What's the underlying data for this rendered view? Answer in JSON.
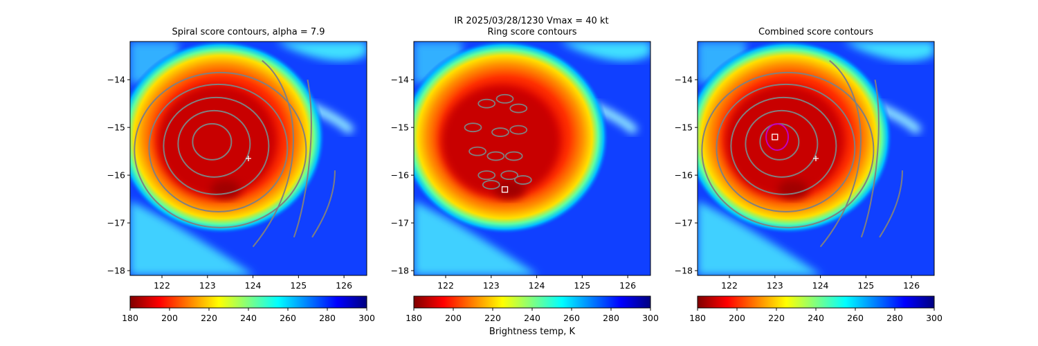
{
  "suptitle": "IR  2025/03/28/1230    Vmax = 40 kt",
  "panels": [
    {
      "title": "Spiral score contours, alpha =  7.9"
    },
    {
      "title": "Ring score contours"
    },
    {
      "title": "Combined score contours"
    }
  ],
  "colorbar_label": "Brightness temp, K",
  "colors": {
    "contour": "#808080",
    "marker": "#ffffff",
    "circle": "#c000c0",
    "colormap": [
      "#800000",
      "#ff0000",
      "#ff8000",
      "#ffff00",
      "#80ff80",
      "#00ffff",
      "#0080ff",
      "#0000ff",
      "#000080"
    ]
  },
  "chart_data": [
    {
      "type": "heatmap",
      "title": "Spiral score contours, alpha =  7.9",
      "xlim": [
        121.3,
        126.5
      ],
      "ylim": [
        -18.1,
        -13.2
      ],
      "xticks": [
        122,
        123,
        124,
        125,
        126
      ],
      "yticks": [
        -14,
        -15,
        -16,
        -17,
        -18
      ],
      "xtick_labels": [
        "122",
        "123",
        "124",
        "125",
        "126"
      ],
      "ytick_labels": [
        "−14",
        "−15",
        "−16",
        "−17",
        "−18"
      ],
      "markers": [
        {
          "type": "plus",
          "x": 123.9,
          "y": -15.65
        }
      ],
      "colorbar": {
        "range": [
          180,
          300
        ],
        "ticks": [
          "180",
          "200",
          "220",
          "240",
          "260",
          "280",
          "300"
        ],
        "cmap": "jet_r"
      }
    },
    {
      "type": "heatmap",
      "title": "Ring score contours",
      "xlim": [
        121.3,
        126.5
      ],
      "ylim": [
        -18.1,
        -13.2
      ],
      "xticks": [
        122,
        123,
        124,
        125,
        126
      ],
      "yticks": [
        -14,
        -15,
        -16,
        -17,
        -18
      ],
      "xtick_labels": [
        "122",
        "123",
        "124",
        "125",
        "126"
      ],
      "ytick_labels": [
        "−14",
        "−15",
        "−16",
        "−17",
        "−18"
      ],
      "markers": [
        {
          "type": "square",
          "x": 123.3,
          "y": -16.3
        }
      ],
      "colorbar": {
        "range": [
          180,
          300
        ],
        "ticks": [
          "180",
          "200",
          "220",
          "240",
          "260",
          "280",
          "300"
        ],
        "cmap": "jet_r",
        "label": "Brightness temp, K"
      }
    },
    {
      "type": "heatmap",
      "title": "Combined score contours",
      "xlim": [
        121.3,
        126.5
      ],
      "ylim": [
        -18.1,
        -13.2
      ],
      "xticks": [
        122,
        123,
        124,
        125,
        126
      ],
      "yticks": [
        -14,
        -15,
        -16,
        -17,
        -18
      ],
      "xtick_labels": [
        "122",
        "123",
        "124",
        "125",
        "126"
      ],
      "ytick_labels": [
        "−14",
        "−15",
        "−16",
        "−17",
        "−18"
      ],
      "markers": [
        {
          "type": "square",
          "x": 123.0,
          "y": -15.2
        },
        {
          "type": "plus",
          "x": 123.9,
          "y": -15.65
        },
        {
          "type": "circle",
          "x": 123.05,
          "y": -15.2
        }
      ],
      "colorbar": {
        "range": [
          180,
          300
        ],
        "ticks": [
          "180",
          "200",
          "220",
          "240",
          "260",
          "280",
          "300"
        ],
        "cmap": "jet_r"
      }
    }
  ]
}
